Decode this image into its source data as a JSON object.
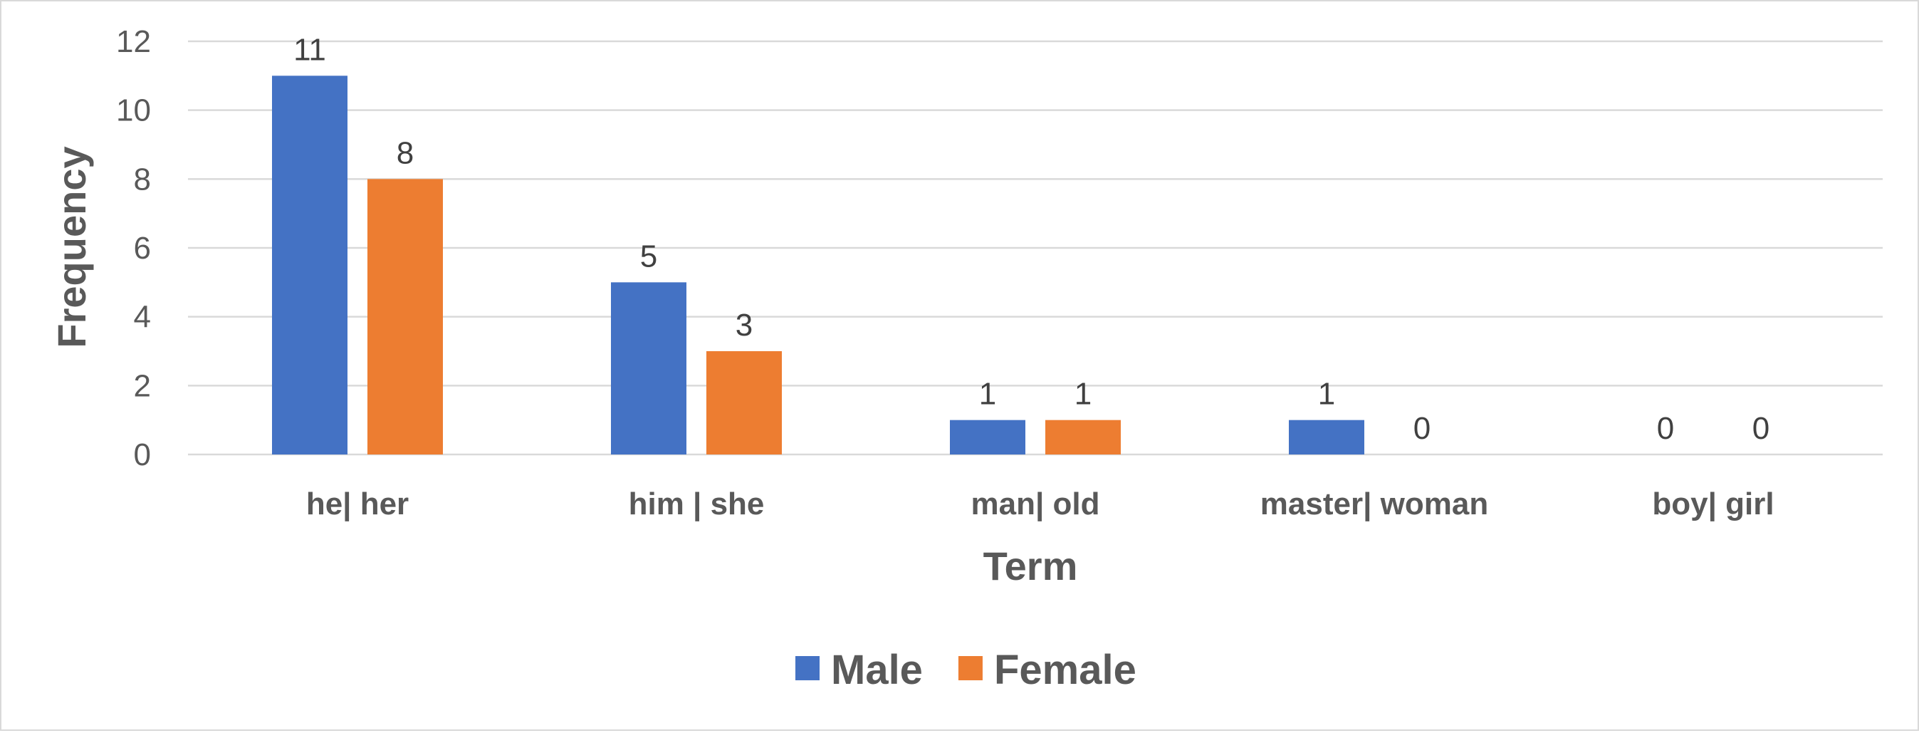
{
  "chart_data": {
    "type": "bar",
    "categories": [
      "he| her",
      "him | she",
      "man| old",
      "master| woman",
      "boy| girl"
    ],
    "series": [
      {
        "name": "Male",
        "values": [
          11,
          5,
          1,
          1,
          0
        ],
        "color": "#4472C4"
      },
      {
        "name": "Female",
        "values": [
          8,
          3,
          1,
          0,
          0
        ],
        "color": "#ED7D31"
      }
    ],
    "xlabel": "Term",
    "ylabel": "Frequency",
    "ylim": [
      0,
      12
    ],
    "yticks": [
      0,
      2,
      4,
      6,
      8,
      10,
      12
    ],
    "grid": true,
    "legend": "bottom",
    "data_labels": true
  }
}
